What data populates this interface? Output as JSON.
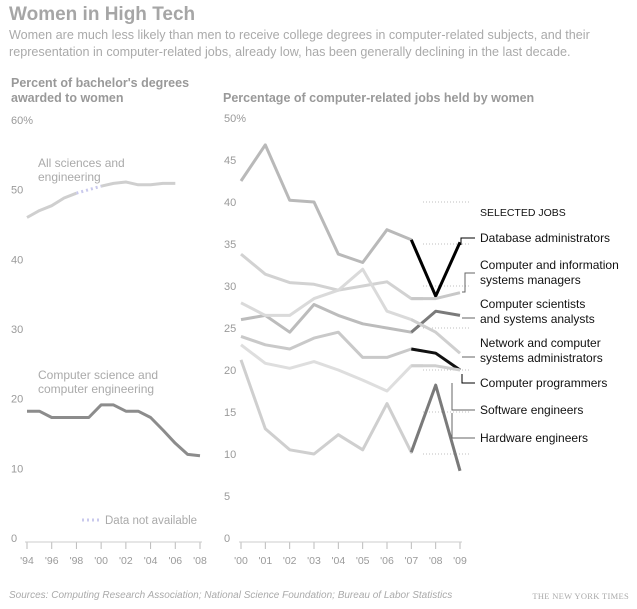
{
  "header": {
    "title": "Women in High Tech",
    "subtitle": "Women are much less likely than men to receive college degrees in computer-related subjects, and their representation in computer-related jobs, already low, has been generally declining in the last decade."
  },
  "footer": {
    "sources": "Sources: Computing Research Association; National Science Foundation; Bureau of Labor Statistics",
    "credit": "THE NEW YORK TIMES"
  },
  "colors": {
    "muted": "#c8c8c8",
    "dark_series": "#7a7a7a",
    "highlight": "#000000",
    "text": "#999999"
  },
  "chart_data": [
    {
      "type": "line",
      "title": "Percent of bachelor's degrees awarded to women",
      "ylim": [
        0,
        60
      ],
      "yticks": [
        "0",
        "10",
        "20",
        "30",
        "40",
        "50",
        "60%"
      ],
      "xticks": [
        "'94",
        "'96",
        "'98",
        "'00",
        "'02",
        "'04",
        "'06",
        "'08"
      ],
      "x": [
        1994,
        1995,
        1996,
        1997,
        1998,
        1999,
        2000,
        2001,
        2002,
        2003,
        2004,
        2005,
        2006,
        2007,
        2008
      ],
      "legend_note": "Data not available",
      "series": [
        {
          "name": "All sciences and engineering",
          "values": [
            46,
            47,
            47.7,
            48.8,
            49.5,
            null,
            50.5,
            50.9,
            51.1,
            50.7,
            50.7,
            50.9,
            50.9,
            null,
            null
          ]
        },
        {
          "name": "Computer science and computer engineering",
          "values": [
            18.2,
            18.2,
            17.3,
            17.3,
            17.3,
            17.3,
            19.1,
            19.1,
            18.2,
            18.2,
            17.3,
            15.5,
            13.6,
            12,
            11.8
          ]
        }
      ]
    },
    {
      "type": "line",
      "title": "Percentage of computer-related jobs held by women",
      "ylim": [
        0,
        50
      ],
      "yticks": [
        "0",
        "5",
        "10",
        "15",
        "20",
        "25",
        "30",
        "35",
        "40",
        "45",
        "50%"
      ],
      "xticks": [
        "'00",
        "'01",
        "'02",
        "'03",
        "'04",
        "'05",
        "'06",
        "'07",
        "'08",
        "'09"
      ],
      "x": [
        2000,
        2001,
        2002,
        2003,
        2004,
        2005,
        2006,
        2007,
        2008,
        2009
      ],
      "legend_title": "SELECTED JOBS",
      "series": [
        {
          "name": "Database administrators",
          "values": [
            42.5,
            46.8,
            40.2,
            40,
            33.8,
            32.8,
            36.7,
            35.5,
            28.8,
            35.2
          ]
        },
        {
          "name": "Computer and information systems managers",
          "values": [
            33.8,
            31.4,
            30.4,
            30.2,
            29.5,
            30,
            30.5,
            28.5,
            28.5,
            29.2
          ]
        },
        {
          "name": "Computer scientists and systems analysts",
          "values": [
            26,
            26.5,
            24.5,
            27.8,
            26.5,
            25.5,
            25,
            24.5,
            27,
            26.5
          ]
        },
        {
          "name": "Network and computer systems administrators",
          "values": [
            28,
            26.5,
            26.5,
            28.5,
            29.5,
            32,
            27,
            26,
            24.5,
            22
          ]
        },
        {
          "name": "Computer programmers",
          "values": [
            24,
            23,
            22.5,
            23.8,
            24.5,
            21.5,
            21.5,
            22.5,
            22,
            20
          ]
        },
        {
          "name": "Software engineers",
          "values": [
            23,
            20.8,
            20.2,
            21,
            20,
            18.8,
            17.5,
            20.5,
            20.5,
            20
          ]
        },
        {
          "name": "Hardware engineers",
          "values": [
            21.2,
            13,
            10.5,
            10,
            12.3,
            10.5,
            16,
            10.2,
            18.2,
            8
          ]
        }
      ]
    }
  ]
}
